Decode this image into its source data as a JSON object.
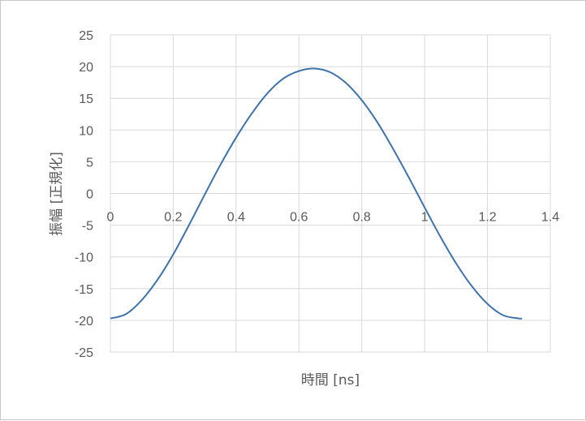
{
  "chart_data": {
    "type": "line",
    "title": "",
    "xlabel": "時間 [ns]",
    "ylabel": "振幅 [正規化]",
    "xlim": [
      0,
      1.4
    ],
    "ylim": [
      -25,
      25
    ],
    "x_ticks": [
      "0",
      "0.2",
      "0.4",
      "0.6",
      "0.8",
      "1",
      "1.2",
      "1.4"
    ],
    "y_ticks": [
      "25",
      "20",
      "15",
      "10",
      "5",
      "0",
      "-5",
      "-10",
      "-15",
      "-20",
      "-25"
    ],
    "grid": true,
    "legend": "none",
    "series": [
      {
        "color": "#3e72ab",
        "x": [
          0,
          0.05,
          0.1,
          0.15,
          0.2,
          0.25,
          0.3,
          0.35,
          0.4,
          0.45,
          0.5,
          0.55,
          0.6,
          0.65,
          0.7,
          0.75,
          0.8,
          0.85,
          0.9,
          0.95,
          1.0,
          1.05,
          1.1,
          1.15,
          1.2,
          1.25,
          1.3,
          1.31
        ],
        "y": [
          -19.7,
          -19.0,
          -16.8,
          -13.6,
          -9.6,
          -5.0,
          -0.2,
          4.5,
          8.8,
          12.6,
          15.8,
          18.1,
          19.3,
          19.7,
          19.1,
          17.4,
          14.7,
          11.2,
          7.0,
          2.5,
          -2.2,
          -6.8,
          -11.0,
          -14.6,
          -17.4,
          -19.2,
          -19.7,
          -19.7
        ]
      }
    ]
  }
}
